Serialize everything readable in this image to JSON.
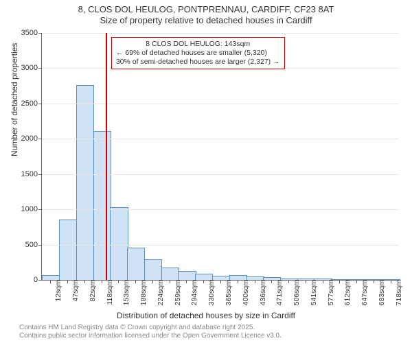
{
  "chart": {
    "type": "histogram",
    "title_line1": "8, CLOS DOL HEULOG, PONTPRENNAU, CARDIFF, CF23 8AT",
    "title_line2": "Size of property relative to detached houses in Cardiff",
    "x_label": "Distribution of detached houses by size in Cardiff",
    "y_label": "Number of detached properties",
    "y_max": 3500,
    "y_ticks": [
      0,
      500,
      1000,
      1500,
      2000,
      2500,
      3000,
      3500
    ],
    "background_color": "#ffffff",
    "grid_color": "#e6e6e6",
    "axis_color": "#666666",
    "bar_fill": "#cfe3f5",
    "bar_stroke": "#5b8fbf",
    "ref_line_color": "#cc0000",
    "annotation_border": "#cc0000",
    "categories": [
      "12sqm",
      "47sqm",
      "82sqm",
      "118sqm",
      "153sqm",
      "188sqm",
      "224sqm",
      "259sqm",
      "294sqm",
      "330sqm",
      "365sqm",
      "400sqm",
      "436sqm",
      "471sqm",
      "506sqm",
      "541sqm",
      "577sqm",
      "612sqm",
      "647sqm",
      "683sqm",
      "718sqm"
    ],
    "values": [
      60,
      850,
      2750,
      2100,
      1020,
      450,
      280,
      170,
      120,
      80,
      50,
      55,
      35,
      25,
      10,
      8,
      6,
      5,
      4,
      3,
      2
    ],
    "ref_line_bin_index": 3,
    "annotation": {
      "title": "8 CLOS DOL HEULOG: 143sqm",
      "line1": "← 69% of detached houses are smaller (5,320)",
      "line2": "30% of semi-detached houses are larger (2,327) →"
    },
    "footer_line1": "Contains HM Land Registry data © Crown copyright and database right 2025.",
    "footer_line2": "Contains public sector information licensed under the Open Government Licence v3.0."
  }
}
